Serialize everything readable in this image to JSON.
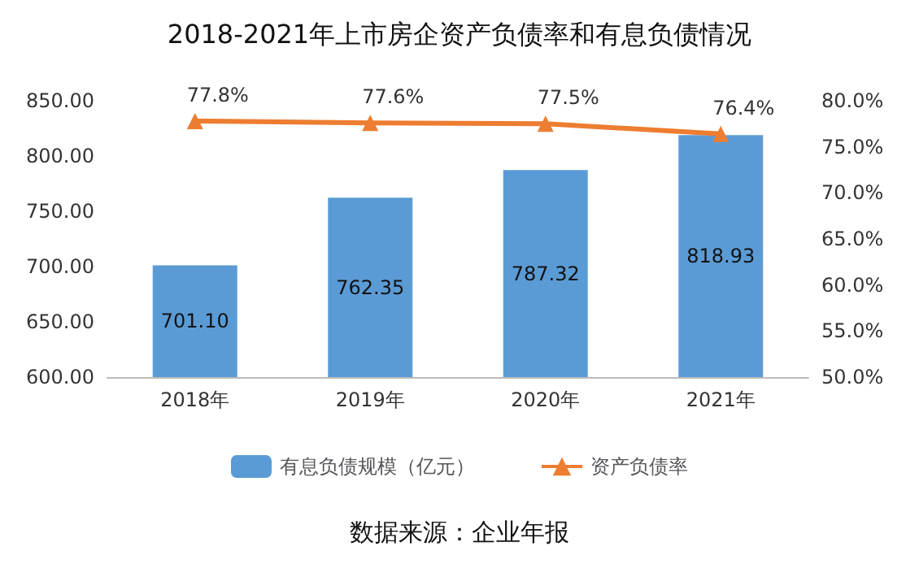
{
  "chart_data": {
    "type": "bar",
    "title": "2018-2021年上市房企资产负债率和有息负债情况",
    "categories": [
      "2018年",
      "2019年",
      "2020年",
      "2021年"
    ],
    "series": [
      {
        "name": "有息负债规模（亿元）",
        "color": "#5b9bd5",
        "values": [
          701.1,
          762.35,
          787.32,
          818.93
        ],
        "value_labels": [
          "701.10",
          "762.35",
          "787.32",
          "818.93"
        ]
      },
      {
        "name": "资产负债率",
        "type": "line",
        "axis": "y2",
        "color": "#ed7d31",
        "marker": "triangle",
        "values": [
          77.8,
          77.6,
          77.5,
          76.4
        ],
        "value_labels": [
          "77.8%",
          "77.6%",
          "77.5%",
          "76.4%"
        ]
      }
    ],
    "ylim": [
      600,
      850
    ],
    "yticks": [
      {
        "value": 600,
        "label": "600.00"
      },
      {
        "value": 650,
        "label": "650.00"
      },
      {
        "value": 700,
        "label": "700.00"
      },
      {
        "value": 750,
        "label": "750.00"
      },
      {
        "value": 800,
        "label": "800.00"
      },
      {
        "value": 850,
        "label": "850.00"
      }
    ],
    "y2lim": [
      50,
      80
    ],
    "y2ticks": [
      {
        "value": 50,
        "label": "50.0%"
      },
      {
        "value": 55,
        "label": "55.0%"
      },
      {
        "value": 60,
        "label": "60.0%"
      },
      {
        "value": 65,
        "label": "65.0%"
      },
      {
        "value": 70,
        "label": "70.0%"
      },
      {
        "value": 75,
        "label": "75.0%"
      },
      {
        "value": 80,
        "label": "80.0%"
      }
    ],
    "legend": "bottom",
    "grid": false,
    "annotations": [
      "数据来源：企业年报"
    ]
  }
}
